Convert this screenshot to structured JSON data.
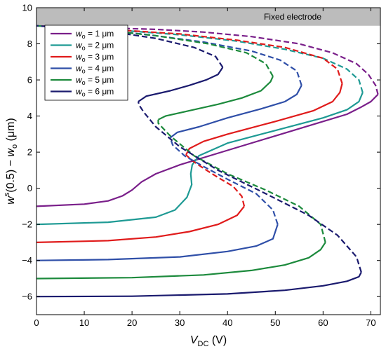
{
  "chart_data": {
    "type": "line",
    "xlabel": {
      "main": "V",
      "sub": "DC",
      "unit": " (V)"
    },
    "ylabel": {
      "w": "w",
      "sup": "s",
      "arg": "(0.5) − ",
      "w2": "w",
      "sub": "o",
      "unit": " (μm)"
    },
    "xlim": [
      0,
      72
    ],
    "ylim": [
      -7,
      10
    ],
    "xticks": [
      0,
      10,
      20,
      30,
      40,
      50,
      60,
      70
    ],
    "yticks": [
      -6,
      -4,
      -2,
      0,
      2,
      4,
      6,
      8,
      10
    ],
    "grid": false,
    "legend_position": "top-left",
    "fixed_electrode": {
      "label": "Fixed electrode",
      "y_range": [
        9,
        10
      ],
      "color": "#bcbcbc"
    },
    "line_styles": {
      "stable": "solid",
      "unstable": "dashed"
    },
    "series": [
      {
        "name_prefix": "w",
        "name_sub": "o",
        "name_value": " = 1 μm",
        "color": "#7a1f8a",
        "stable": [
          [
            0,
            -1
          ],
          [
            10,
            -0.88
          ],
          [
            15,
            -0.7
          ],
          [
            18,
            -0.42
          ],
          [
            20,
            -0.1
          ],
          [
            22,
            0.35
          ],
          [
            25,
            0.8
          ],
          [
            30,
            1.3
          ],
          [
            40,
            2.1
          ],
          [
            50,
            2.9
          ],
          [
            60,
            3.7
          ],
          [
            65,
            4.1
          ],
          [
            68,
            4.5
          ],
          [
            70,
            4.8
          ],
          [
            71.5,
            5.2
          ]
        ],
        "unstable": [
          [
            71.5,
            5.2
          ],
          [
            71,
            5.7
          ],
          [
            69.5,
            6.3
          ],
          [
            67,
            6.9
          ],
          [
            62,
            7.5
          ],
          [
            55,
            8.0
          ],
          [
            45,
            8.4
          ],
          [
            35,
            8.65
          ],
          [
            25,
            8.8
          ],
          [
            12,
            8.9
          ],
          [
            0,
            9.0
          ]
        ]
      },
      {
        "name_prefix": "w",
        "name_sub": "o",
        "name_value": " = 2 μm",
        "color": "#1e9a94",
        "stable": [
          [
            0,
            -2
          ],
          [
            15,
            -1.88
          ],
          [
            25,
            -1.6
          ],
          [
            29,
            -1.2
          ],
          [
            31.5,
            -0.5
          ],
          [
            32.5,
            0.2
          ],
          [
            32.3,
            0.8
          ],
          [
            32.6,
            1.3
          ],
          [
            34,
            1.8
          ],
          [
            40,
            2.5
          ],
          [
            50,
            3.2
          ],
          [
            60,
            3.9
          ],
          [
            65,
            4.35
          ],
          [
            67.5,
            4.8
          ],
          [
            68.3,
            5.3
          ]
        ],
        "unstable": [
          [
            68.3,
            5.3
          ],
          [
            67.5,
            6.0
          ],
          [
            65,
            6.6
          ],
          [
            60,
            7.2
          ],
          [
            52,
            7.7
          ],
          [
            42,
            8.15
          ],
          [
            30,
            8.5
          ],
          [
            15,
            8.8
          ],
          [
            0,
            9.0
          ]
        ]
      },
      {
        "name_prefix": "w",
        "name_sub": "o",
        "name_value": " = 3 μm",
        "color": "#e01b1b",
        "stable": [
          [
            0,
            -3
          ],
          [
            15,
            -2.9
          ],
          [
            25,
            -2.7
          ],
          [
            32,
            -2.4
          ],
          [
            38,
            -2.0
          ],
          [
            42,
            -1.5
          ],
          [
            43.5,
            -1.0
          ]
        ],
        "unstable1": [
          [
            43.5,
            -1.0
          ],
          [
            43,
            -0.45
          ],
          [
            41.2,
            0.1
          ],
          [
            38,
            0.6
          ],
          [
            35,
            1.1
          ],
          [
            32.5,
            1.55
          ],
          [
            31.3,
            1.85
          ]
        ],
        "stable2": [
          [
            31.3,
            1.85
          ],
          [
            32,
            2.2
          ],
          [
            35,
            2.6
          ],
          [
            40,
            3.0
          ],
          [
            50,
            3.7
          ],
          [
            58,
            4.3
          ],
          [
            62,
            4.8
          ],
          [
            63.5,
            5.3
          ],
          [
            64,
            5.8
          ]
        ],
        "unstable": [
          [
            64,
            5.8
          ],
          [
            63,
            6.6
          ],
          [
            60,
            7.2
          ],
          [
            52,
            7.8
          ],
          [
            42,
            8.2
          ],
          [
            30,
            8.55
          ],
          [
            15,
            8.8
          ],
          [
            0,
            9.0
          ]
        ]
      },
      {
        "name_prefix": "w",
        "name_sub": "o",
        "name_value": " = 4 μm",
        "color": "#2f4fa8",
        "stable": [
          [
            0,
            -4
          ],
          [
            15,
            -3.95
          ],
          [
            30,
            -3.8
          ],
          [
            40,
            -3.5
          ],
          [
            46,
            -3.2
          ],
          [
            49.5,
            -2.8
          ],
          [
            50.5,
            -2.0
          ]
        ],
        "unstable1": [
          [
            50.5,
            -2.0
          ],
          [
            49.5,
            -1.2
          ],
          [
            46,
            -0.3
          ],
          [
            40,
            0.5
          ],
          [
            35,
            1.2
          ],
          [
            31,
            1.8
          ],
          [
            28.5,
            2.4
          ],
          [
            28,
            2.8
          ]
        ],
        "stable2": [
          [
            28,
            2.8
          ],
          [
            29.5,
            3.1
          ],
          [
            34,
            3.4
          ],
          [
            40,
            3.9
          ],
          [
            47,
            4.4
          ],
          [
            52,
            4.8
          ],
          [
            54.5,
            5.2
          ],
          [
            55.5,
            5.7
          ]
        ],
        "unstable": [
          [
            55.5,
            5.7
          ],
          [
            54.5,
            6.5
          ],
          [
            51,
            7.1
          ],
          [
            45,
            7.6
          ],
          [
            35,
            8.1
          ],
          [
            22,
            8.55
          ],
          [
            10,
            8.85
          ],
          [
            0,
            9.0
          ]
        ]
      },
      {
        "name_prefix": "w",
        "name_sub": "o",
        "name_value": " = 5 μm",
        "color": "#1c8a3c",
        "stable": [
          [
            0,
            -5
          ],
          [
            20,
            -4.95
          ],
          [
            35,
            -4.8
          ],
          [
            45,
            -4.55
          ],
          [
            52,
            -4.25
          ],
          [
            57,
            -3.85
          ],
          [
            59.5,
            -3.4
          ],
          [
            60.5,
            -3.0
          ]
        ],
        "unstable1": [
          [
            60.5,
            -3.0
          ],
          [
            59.5,
            -2.0
          ],
          [
            55,
            -1.0
          ],
          [
            48,
            -0.1
          ],
          [
            40,
            0.8
          ],
          [
            33,
            1.8
          ],
          [
            28,
            2.9
          ],
          [
            25.5,
            3.6
          ],
          [
            25.5,
            3.8
          ]
        ],
        "stable2": [
          [
            25.5,
            3.8
          ],
          [
            27,
            4.0
          ],
          [
            32,
            4.3
          ],
          [
            38,
            4.65
          ],
          [
            43,
            5.0
          ],
          [
            47,
            5.4
          ],
          [
            49,
            5.9
          ],
          [
            49.5,
            6.2
          ]
        ],
        "unstable": [
          [
            49.5,
            6.2
          ],
          [
            48,
            6.9
          ],
          [
            44,
            7.5
          ],
          [
            36,
            8.0
          ],
          [
            25,
            8.45
          ],
          [
            12,
            8.8
          ],
          [
            0,
            9.0
          ]
        ]
      },
      {
        "name_prefix": "w",
        "name_sub": "o",
        "name_value": " = 6 μm",
        "color": "#1a1a6e",
        "stable": [
          [
            0,
            -6
          ],
          [
            20,
            -5.98
          ],
          [
            40,
            -5.85
          ],
          [
            52,
            -5.65
          ],
          [
            60,
            -5.4
          ],
          [
            65,
            -5.15
          ],
          [
            67.5,
            -4.9
          ],
          [
            68,
            -4.65
          ]
        ],
        "unstable1": [
          [
            68,
            -4.65
          ],
          [
            67,
            -3.8
          ],
          [
            63,
            -2.6
          ],
          [
            57,
            -1.5
          ],
          [
            48,
            -0.3
          ],
          [
            38,
            1.0
          ],
          [
            30,
            2.3
          ],
          [
            25,
            3.4
          ],
          [
            22.5,
            4.2
          ],
          [
            21.5,
            4.6
          ],
          [
            21.3,
            4.8
          ]
        ],
        "stable2": [
          [
            21.3,
            4.8
          ],
          [
            23,
            5.1
          ],
          [
            28,
            5.4
          ],
          [
            32,
            5.7
          ],
          [
            35.5,
            6.0
          ],
          [
            38,
            6.3
          ],
          [
            39,
            6.7
          ]
        ],
        "unstable": [
          [
            39,
            6.7
          ],
          [
            37.5,
            7.3
          ],
          [
            33,
            7.8
          ],
          [
            25,
            8.3
          ],
          [
            15,
            8.7
          ],
          [
            0,
            9.0
          ]
        ]
      }
    ]
  }
}
